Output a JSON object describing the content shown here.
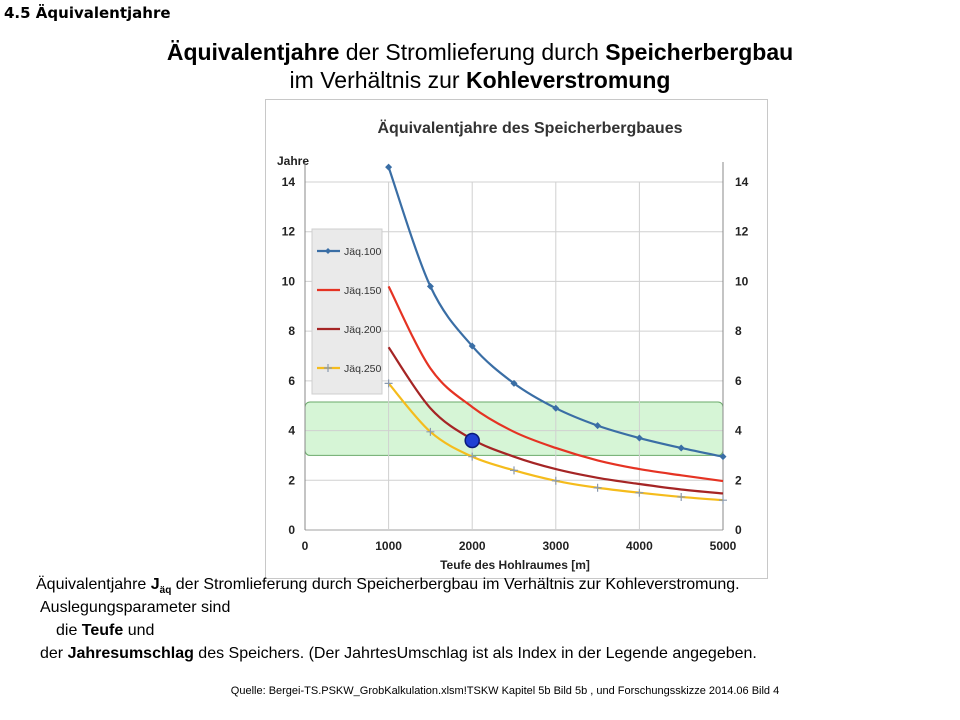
{
  "section_label": "4.5 Äquivalentjahre",
  "headline": {
    "line1_bold_a": "Äquivalentjahre",
    "line1_text": " der Stromlieferung durch ",
    "line1_bold_b": "Speicherbergbau",
    "line2_text": "im Verhältnis zur ",
    "line2_bold": "Kohleverstromung"
  },
  "chart_data": {
    "type": "line",
    "title": "Äquivalentjahre des Speicherbergbaues",
    "xlabel": "Teufe des Hohlraumes [m]",
    "ylabel": "Jahre",
    "xlim": [
      0,
      5000
    ],
    "ylim": [
      0,
      14
    ],
    "x_ticks": [
      0,
      1000,
      2000,
      3000,
      4000,
      5000
    ],
    "y_ticks": [
      0,
      2,
      4,
      6,
      8,
      10,
      12,
      14
    ],
    "grid": true,
    "legend_position": "left",
    "series": [
      {
        "name": "Jäq.100",
        "color": "#3a6ea5",
        "marker": "diamond",
        "x": [
          1000,
          1500,
          2000,
          2500,
          3000,
          3500,
          4000,
          4500,
          5000
        ],
        "values": [
          14.6,
          9.8,
          7.4,
          5.9,
          4.9,
          4.2,
          3.7,
          3.3,
          2.95
        ]
      },
      {
        "name": "Jäq.150",
        "color": "#e53323",
        "marker": "none",
        "x": [
          1000,
          1500,
          2000,
          2500,
          3000,
          3500,
          4000,
          4500,
          5000
        ],
        "values": [
          9.8,
          6.5,
          4.95,
          3.95,
          3.3,
          2.8,
          2.45,
          2.2,
          1.97
        ]
      },
      {
        "name": "Jäq.200",
        "color": "#a52525",
        "marker": "none",
        "x": [
          1000,
          1500,
          2000,
          2500,
          3000,
          3500,
          4000,
          4500,
          5000
        ],
        "values": [
          7.35,
          4.9,
          3.65,
          2.95,
          2.45,
          2.1,
          1.85,
          1.63,
          1.47
        ]
      },
      {
        "name": "Jäq.250",
        "color": "#f5bc1c",
        "marker": "plus",
        "x": [
          1000,
          1500,
          2000,
          2500,
          3000,
          3500,
          4000,
          4500,
          5000
        ],
        "values": [
          5.9,
          3.95,
          2.95,
          2.4,
          1.98,
          1.7,
          1.5,
          1.33,
          1.2
        ]
      }
    ],
    "highlight_band": {
      "y_from": 3.0,
      "y_to": 5.15,
      "color": "#d6f5d6",
      "border": "#6aaa6a"
    },
    "highlight_point": {
      "x": 2000,
      "y": 3.6,
      "color": "#1f3fd4"
    }
  },
  "captions": {
    "line1_a": "Äquivalentjahre ",
    "line1_symbol": "J",
    "line1_sub": "äq",
    "line1_b": "  der Stromlieferung durch Speicherbergbau im Verhältnis zur Kohleverstromung.",
    "line2": "Auslegungsparameter sind",
    "line3_a": "die  ",
    "line3_bold": "Teufe",
    "line3_b": " und",
    "line4_a": "der ",
    "line4_bold": "Jahresumschlag",
    "line4_b": " des Speichers. (Der JahrtesUmschlag ist als Index in der Legende angegeben."
  },
  "source": "Quelle:  Bergei-TS.PSKW_GrobKalkulation.xlsm!TSKW  Kapitel 5b Bild 5b ,  und Forschungsskizze 2014.06 Bild 4"
}
